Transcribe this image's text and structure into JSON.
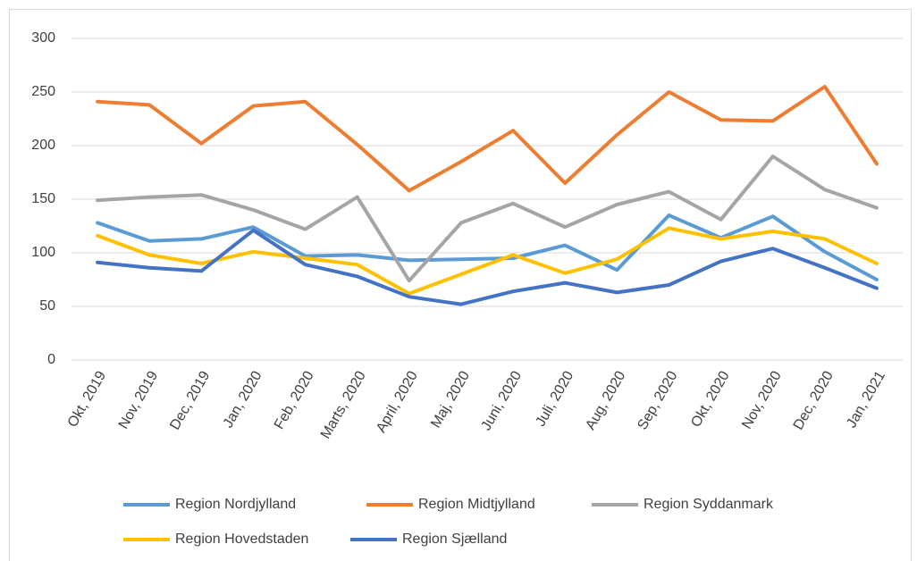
{
  "chart_data": {
    "type": "line",
    "categories": [
      "Okt, 2019",
      "Nov, 2019",
      "Dec, 2019",
      "Jan, 2020",
      "Feb, 2020",
      "Marts, 2020",
      "April, 2020",
      "Maj, 2020",
      "Juni, 2020",
      "Juli, 2020",
      "Aug, 2020",
      "Sep, 2020",
      "Okt, 2020",
      "Nov, 2020",
      "Dec, 2020",
      "Jan, 2021"
    ],
    "series": [
      {
        "name": "Region Nordjylland",
        "color": "#5b9bd5",
        "values": [
          128,
          111,
          113,
          124,
          97,
          98,
          93,
          94,
          95,
          107,
          84,
          135,
          114,
          134,
          101,
          75
        ]
      },
      {
        "name": "Region Midtjylland",
        "color": "#ed7d31",
        "values": [
          241,
          238,
          202,
          237,
          241,
          201,
          158,
          185,
          214,
          165,
          210,
          250,
          224,
          223,
          255,
          183
        ]
      },
      {
        "name": "Region Syddanmark",
        "color": "#a5a5a5",
        "values": [
          149,
          152,
          154,
          140,
          122,
          152,
          74,
          128,
          146,
          124,
          145,
          157,
          131,
          190,
          159,
          142
        ]
      },
      {
        "name": "Region Hovedstaden",
        "color": "#ffc000",
        "values": [
          116,
          98,
          90,
          101,
          95,
          89,
          62,
          80,
          98,
          81,
          94,
          123,
          113,
          120,
          113,
          90
        ]
      },
      {
        "name": "Region Sjælland",
        "color": "#4472c4",
        "values": [
          91,
          86,
          83,
          121,
          89,
          78,
          59,
          52,
          64,
          72,
          63,
          70,
          92,
          104,
          86,
          67
        ]
      }
    ],
    "ylim": [
      0,
      300
    ],
    "yticks": [
      0,
      50,
      100,
      150,
      200,
      250,
      300
    ],
    "grid": true,
    "legend": "bottom"
  }
}
